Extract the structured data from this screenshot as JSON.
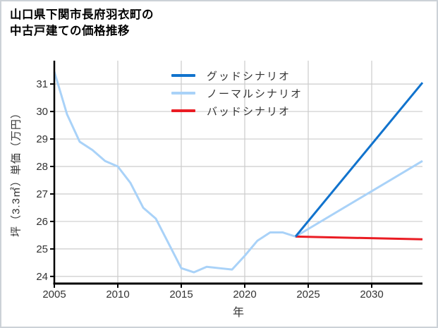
{
  "figure": {
    "background_color": "#ffffff",
    "border_color": "#ccd1d7"
  },
  "title": {
    "line1": "山口県下関市長府羽衣町の",
    "line2": "中古戸建ての価格推移"
  },
  "chart_data": {
    "type": "line",
    "title": "山口県下関市長府羽衣町の中古戸建ての価格推移",
    "xlabel": "年",
    "ylabel": "坪（3.3㎡）単価（万円）",
    "xlim": [
      2005,
      2034
    ],
    "ylim": [
      23.74,
      31.85
    ],
    "xticks": [
      2005,
      2010,
      2015,
      2020,
      2025,
      2030
    ],
    "yticks": [
      24,
      25,
      26,
      27,
      28,
      29,
      30,
      31
    ],
    "grid": true,
    "grid_color": "#cccccc",
    "axis_color": "#000000",
    "tick_label_color": "#333333",
    "legend": {
      "frame": false,
      "position": "upper center-left"
    },
    "series": [
      {
        "name": "グッドシナリオ",
        "color": "#1173cd",
        "x": [
          2024,
          2034
        ],
        "y": [
          25.45,
          31.05
        ]
      },
      {
        "name": "ノーマルシナリオ",
        "color": "#a9d2f8",
        "x": [
          2005,
          2006,
          2007,
          2008,
          2009,
          2010,
          2011,
          2012,
          2013,
          2014,
          2015,
          2016,
          2017,
          2018,
          2019,
          2020,
          2021,
          2022,
          2023,
          2024,
          2034
        ],
        "y": [
          31.45,
          29.9,
          28.9,
          28.6,
          28.2,
          28.0,
          27.4,
          26.5,
          26.1,
          25.2,
          24.3,
          24.15,
          24.35,
          24.3,
          24.25,
          24.75,
          25.3,
          25.6,
          25.6,
          25.45,
          28.2
        ]
      },
      {
        "name": "バッドシナリオ",
        "color": "#ea1c23",
        "x": [
          2024,
          2034
        ],
        "y": [
          25.45,
          25.35
        ]
      }
    ]
  }
}
